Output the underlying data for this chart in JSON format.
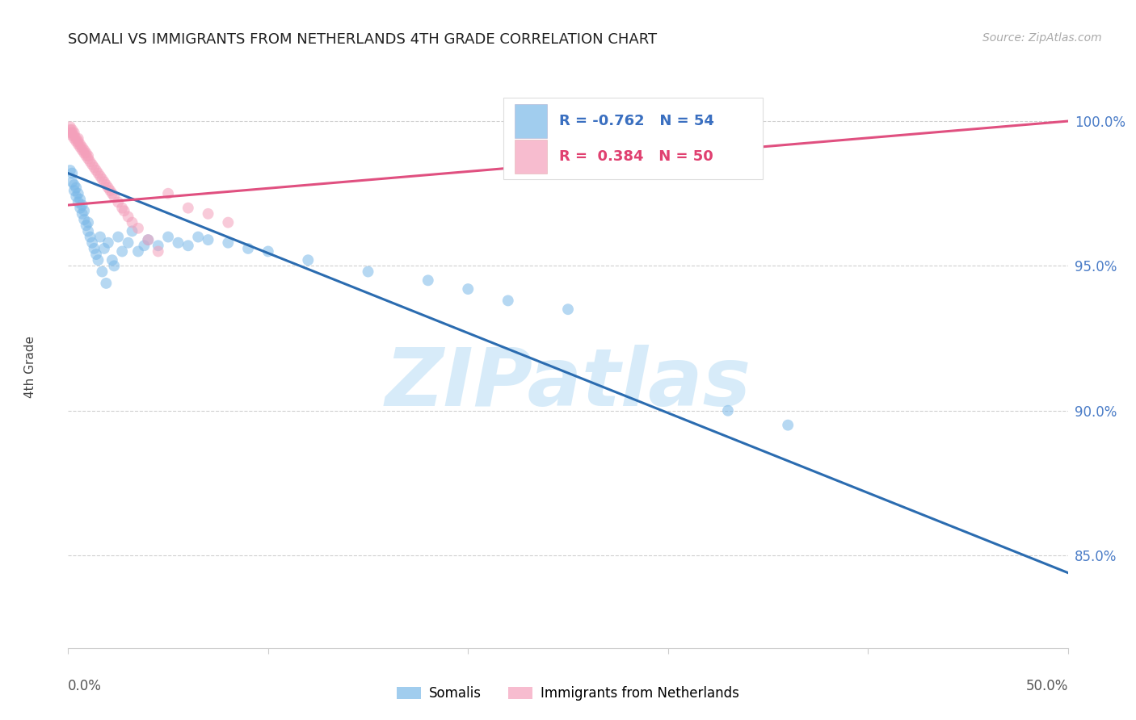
{
  "title": "SOMALI VS IMMIGRANTS FROM NETHERLANDS 4TH GRADE CORRELATION CHART",
  "source": "Source: ZipAtlas.com",
  "ylabel": "4th Grade",
  "ylabel_right_ticks": [
    "85.0%",
    "90.0%",
    "95.0%",
    "100.0%"
  ],
  "ylabel_right_vals": [
    0.85,
    0.9,
    0.95,
    1.0
  ],
  "background_color": "#ffffff",
  "grid_color": "#d0d0d0",
  "watermark_text": "ZIPatlas",
  "blue_color": "#7ab8e8",
  "pink_color": "#f4a0bb",
  "blue_line_color": "#2b6cb0",
  "pink_line_color": "#e05080",
  "legend_blue_R": "-0.762",
  "legend_blue_N": "54",
  "legend_pink_R": "0.384",
  "legend_pink_N": "50",
  "blue_scatter_x": [
    0.001,
    0.002,
    0.002,
    0.003,
    0.003,
    0.004,
    0.004,
    0.005,
    0.005,
    0.006,
    0.006,
    0.007,
    0.007,
    0.008,
    0.008,
    0.009,
    0.01,
    0.01,
    0.011,
    0.012,
    0.013,
    0.014,
    0.015,
    0.016,
    0.017,
    0.018,
    0.019,
    0.02,
    0.022,
    0.023,
    0.025,
    0.027,
    0.03,
    0.032,
    0.035,
    0.038,
    0.04,
    0.045,
    0.05,
    0.055,
    0.06,
    0.065,
    0.07,
    0.08,
    0.09,
    0.1,
    0.12,
    0.15,
    0.18,
    0.2,
    0.22,
    0.25,
    0.33,
    0.36
  ],
  "blue_scatter_y": [
    0.983,
    0.979,
    0.982,
    0.976,
    0.978,
    0.974,
    0.977,
    0.972,
    0.975,
    0.97,
    0.973,
    0.968,
    0.971,
    0.966,
    0.969,
    0.964,
    0.962,
    0.965,
    0.96,
    0.958,
    0.956,
    0.954,
    0.952,
    0.96,
    0.948,
    0.956,
    0.944,
    0.958,
    0.952,
    0.95,
    0.96,
    0.955,
    0.958,
    0.962,
    0.955,
    0.957,
    0.959,
    0.957,
    0.96,
    0.958,
    0.957,
    0.96,
    0.959,
    0.958,
    0.956,
    0.955,
    0.952,
    0.948,
    0.945,
    0.942,
    0.938,
    0.935,
    0.9,
    0.895
  ],
  "pink_scatter_x": [
    0.001,
    0.001,
    0.001,
    0.002,
    0.002,
    0.002,
    0.003,
    0.003,
    0.003,
    0.004,
    0.004,
    0.005,
    0.005,
    0.005,
    0.006,
    0.006,
    0.007,
    0.007,
    0.008,
    0.008,
    0.009,
    0.009,
    0.01,
    0.01,
    0.011,
    0.012,
    0.013,
    0.014,
    0.015,
    0.016,
    0.017,
    0.018,
    0.019,
    0.02,
    0.021,
    0.022,
    0.023,
    0.025,
    0.027,
    0.028,
    0.03,
    0.032,
    0.035,
    0.04,
    0.045,
    0.05,
    0.06,
    0.07,
    0.08,
    0.34
  ],
  "pink_scatter_y": [
    0.998,
    0.997,
    0.996,
    0.995,
    0.996,
    0.997,
    0.994,
    0.995,
    0.996,
    0.993,
    0.994,
    0.992,
    0.993,
    0.994,
    0.991,
    0.992,
    0.99,
    0.991,
    0.989,
    0.99,
    0.988,
    0.989,
    0.987,
    0.988,
    0.986,
    0.985,
    0.984,
    0.983,
    0.982,
    0.981,
    0.98,
    0.979,
    0.978,
    0.977,
    0.976,
    0.975,
    0.974,
    0.972,
    0.97,
    0.969,
    0.967,
    0.965,
    0.963,
    0.959,
    0.955,
    0.975,
    0.97,
    0.968,
    0.965,
    1.0
  ],
  "xlim": [
    0.0,
    0.5
  ],
  "ylim": [
    0.818,
    1.012
  ],
  "blue_trendline_x": [
    0.0,
    0.5
  ],
  "blue_trendline_y": [
    0.982,
    0.844
  ],
  "pink_trendline_x": [
    0.0,
    0.5
  ],
  "pink_trendline_y": [
    0.971,
    1.0
  ]
}
